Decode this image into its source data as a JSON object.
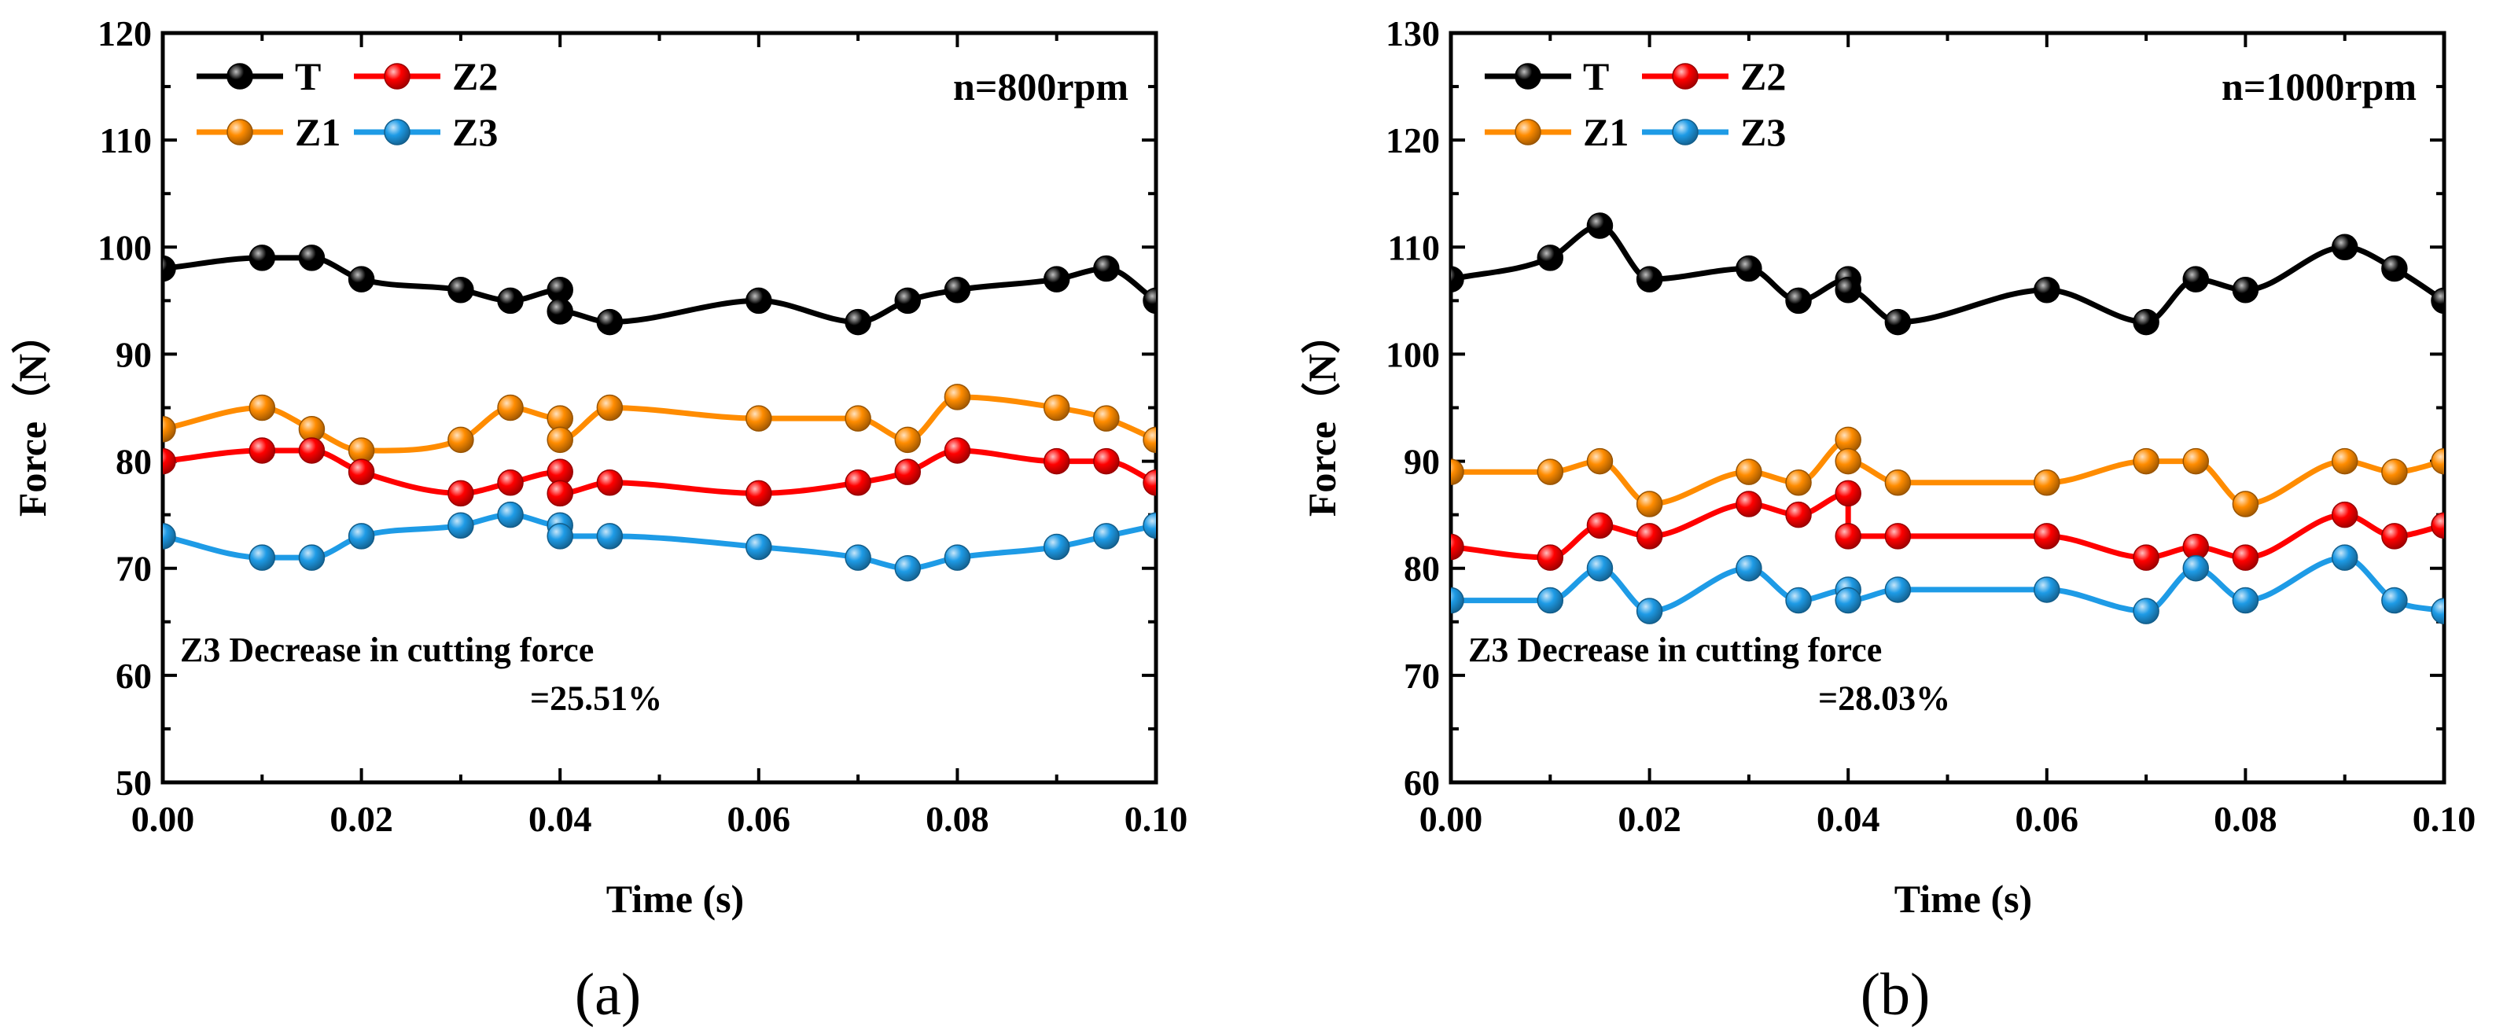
{
  "chart_data": [
    {
      "type": "line",
      "panel_label": "(a)",
      "speed_label": "n=800rpm",
      "xlabel": "Time (s)",
      "ylabel": "Force（N）",
      "xlim": [
        0,
        0.1
      ],
      "ylim": [
        50,
        120
      ],
      "xticks": [
        "0.00",
        "0.02",
        "0.04",
        "0.06",
        "0.08",
        "0.10"
      ],
      "yticks": [
        "50",
        "60",
        "70",
        "80",
        "90",
        "100",
        "110",
        "120"
      ],
      "annotation_line1": "Z3 Decrease in  cutting force",
      "annotation_line2": "=25.51%",
      "legend_position": "top-left",
      "x": [
        0,
        0.01,
        0.015,
        0.02,
        0.03,
        0.035,
        0.04,
        0.04,
        0.045,
        0.06,
        0.07,
        0.075,
        0.08,
        0.09,
        0.095,
        0.1
      ],
      "series": [
        {
          "name": "T",
          "color": "#000000",
          "values": [
            98,
            99,
            99,
            97,
            96,
            95,
            96,
            94,
            93,
            95,
            93,
            95,
            96,
            97,
            98,
            95
          ]
        },
        {
          "name": "Z1",
          "color": "#ff8c00",
          "values": [
            83,
            85,
            83,
            81,
            82,
            85,
            84,
            82,
            85,
            84,
            84,
            82,
            86,
            85,
            84,
            82
          ]
        },
        {
          "name": "Z2",
          "color": "#ff0000",
          "values": [
            80,
            81,
            81,
            79,
            77,
            78,
            79,
            77,
            78,
            77,
            78,
            79,
            81,
            80,
            80,
            78
          ]
        },
        {
          "name": "Z3",
          "color": "#1e9be6",
          "values": [
            73,
            71,
            71,
            73,
            74,
            75,
            74,
            73,
            73,
            72,
            71,
            70,
            71,
            72,
            73,
            74
          ]
        }
      ]
    },
    {
      "type": "line",
      "panel_label": "(b)",
      "speed_label": "n=1000rpm",
      "xlabel": "Time (s)",
      "ylabel": "Force（N）",
      "xlim": [
        0,
        0.1
      ],
      "ylim": [
        60,
        130
      ],
      "xticks": [
        "0.00",
        "0.02",
        "0.04",
        "0.06",
        "0.08",
        "0.10"
      ],
      "yticks": [
        "60",
        "70",
        "80",
        "90",
        "100",
        "110",
        "120",
        "130"
      ],
      "annotation_line1": "Z3 Decrease in  cutting force",
      "annotation_line2": "=28.03%",
      "legend_position": "top-left",
      "x": [
        0,
        0.01,
        0.015,
        0.02,
        0.03,
        0.035,
        0.04,
        0.04,
        0.045,
        0.06,
        0.07,
        0.075,
        0.08,
        0.09,
        0.095,
        0.1
      ],
      "series": [
        {
          "name": "T",
          "color": "#000000",
          "values": [
            107,
            109,
            112,
            107,
            108,
            105,
            107,
            106,
            103,
            106,
            103,
            107,
            106,
            110,
            108,
            105
          ]
        },
        {
          "name": "Z1",
          "color": "#ff8c00",
          "values": [
            89,
            89,
            90,
            86,
            89,
            88,
            92,
            90,
            88,
            88,
            90,
            90,
            86,
            90,
            89,
            90
          ]
        },
        {
          "name": "Z2",
          "color": "#ff0000",
          "values": [
            82,
            81,
            84,
            83,
            86,
            85,
            87,
            83,
            83,
            83,
            81,
            82,
            81,
            85,
            83,
            84
          ]
        },
        {
          "name": "Z3",
          "color": "#1e9be6",
          "values": [
            77,
            77,
            80,
            76,
            80,
            77,
            78,
            77,
            78,
            78,
            76,
            80,
            77,
            81,
            77,
            76
          ]
        }
      ]
    }
  ]
}
